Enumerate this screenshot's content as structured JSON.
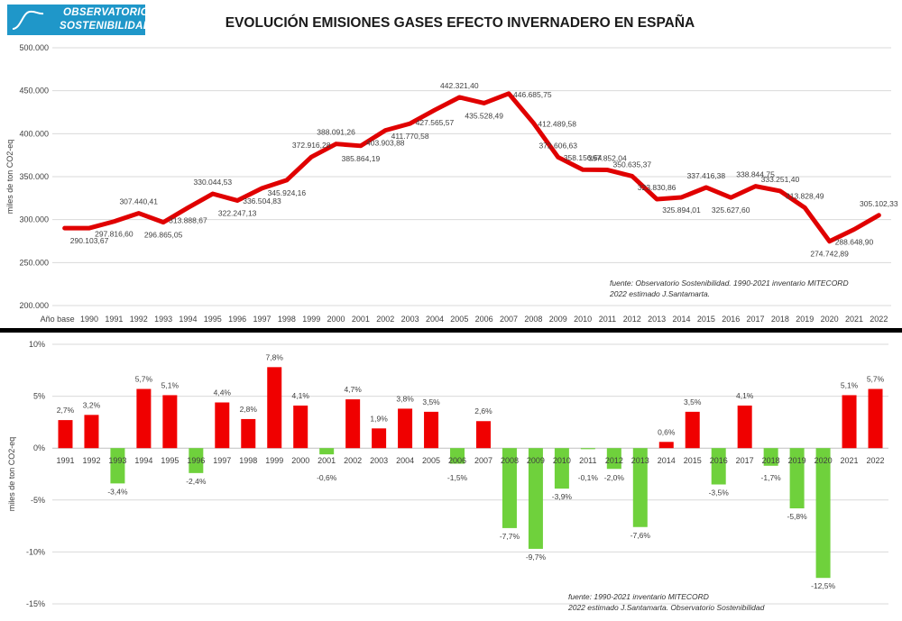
{
  "logo": {
    "line1": "OBSERVATORIO",
    "line2": "SOSTENIBILIDAD"
  },
  "title": "EVOLUCIÓN EMISIONES GASES EFECTO INVERNADERO EN ESPAÑA",
  "colors": {
    "line": "#e00000",
    "positive": "#f00000",
    "negative": "#6fd13c",
    "logo": "#1f97c9",
    "grid": "#d9d9d9"
  },
  "chart_data": [
    {
      "type": "line",
      "title": "",
      "ylabel": "miles de ton CO2-eq",
      "xlabel": "",
      "ylim": [
        200000,
        500000
      ],
      "yticks": [
        "200.000",
        "250.000",
        "300.000",
        "350.000",
        "400.000",
        "450.000",
        "500.000"
      ],
      "ytick_values": [
        200000,
        250000,
        300000,
        350000,
        400000,
        450000,
        500000
      ],
      "grid": true,
      "categories": [
        "Año base",
        "1990",
        "1991",
        "1992",
        "1993",
        "1994",
        "1995",
        "1996",
        "1997",
        "1998",
        "1999",
        "2000",
        "2001",
        "2002",
        "2003",
        "2004",
        "2005",
        "2006",
        "2007",
        "2008",
        "2009",
        "2010",
        "2011",
        "2012",
        "2013",
        "2014",
        "2015",
        "2016",
        "2017",
        "2018",
        "2019",
        "2020",
        "2021",
        "2022"
      ],
      "values": [
        290103.67,
        290103.67,
        297816.6,
        307440.41,
        296865.05,
        313888.67,
        330044.53,
        322247.13,
        336504.83,
        345924.16,
        372916.28,
        388091.26,
        385864.19,
        403903.88,
        411770.58,
        427565.57,
        442321.4,
        435528.49,
        446685.75,
        412489.58,
        372606.63,
        358156.64,
        357852.04,
        350635.37,
        323830.86,
        325894.01,
        337416.38,
        325627.6,
        338844.75,
        333251.4,
        313828.49,
        274742.89,
        288648.9,
        305102.33
      ],
      "data_labels": [
        {
          "i": 1,
          "text": "290.103,67",
          "pos": "below"
        },
        {
          "i": 2,
          "text": "297.816,60",
          "pos": "below"
        },
        {
          "i": 3,
          "text": "307.440,41",
          "pos": "above"
        },
        {
          "i": 4,
          "text": "296.865,05",
          "pos": "below"
        },
        {
          "i": 5,
          "text": "313.888,67",
          "pos": "below"
        },
        {
          "i": 6,
          "text": "330.044,53",
          "pos": "above"
        },
        {
          "i": 7,
          "text": "322.247,13",
          "pos": "below"
        },
        {
          "i": 8,
          "text": "336.504,83",
          "pos": "below"
        },
        {
          "i": 9,
          "text": "345.924,16",
          "pos": "below"
        },
        {
          "i": 10,
          "text": "372.916,28",
          "pos": "above"
        },
        {
          "i": 11,
          "text": "388.091,26",
          "pos": "above"
        },
        {
          "i": 12,
          "text": "385.864,19",
          "pos": "below"
        },
        {
          "i": 13,
          "text": "403.903,88",
          "pos": "below"
        },
        {
          "i": 14,
          "text": "411.770,58",
          "pos": "below"
        },
        {
          "i": 15,
          "text": "427.565,57",
          "pos": "below"
        },
        {
          "i": 16,
          "text": "442.321,40",
          "pos": "above"
        },
        {
          "i": 17,
          "text": "435.528,49",
          "pos": "below"
        },
        {
          "i": 18,
          "text": "446.685,75",
          "pos": "right"
        },
        {
          "i": 19,
          "text": "412.489,58",
          "pos": "right"
        },
        {
          "i": 20,
          "text": "372.606,63",
          "pos": "above"
        },
        {
          "i": 21,
          "text": "358.156,64",
          "pos": "above"
        },
        {
          "i": 22,
          "text": "357.852,04",
          "pos": "above"
        },
        {
          "i": 23,
          "text": "350.635,37",
          "pos": "above"
        },
        {
          "i": 24,
          "text": "323.830,86",
          "pos": "above"
        },
        {
          "i": 25,
          "text": "325.894,01",
          "pos": "below"
        },
        {
          "i": 26,
          "text": "337.416,38",
          "pos": "above"
        },
        {
          "i": 27,
          "text": "325.627,60",
          "pos": "below"
        },
        {
          "i": 28,
          "text": "338.844,75",
          "pos": "above"
        },
        {
          "i": 29,
          "text": "333.251,40",
          "pos": "above"
        },
        {
          "i": 30,
          "text": "313.828,49",
          "pos": "above"
        },
        {
          "i": 31,
          "text": "274.742,89",
          "pos": "below"
        },
        {
          "i": 32,
          "text": "288.648,90",
          "pos": "below"
        },
        {
          "i": 33,
          "text": "305.102,33",
          "pos": "above"
        }
      ],
      "source_note": [
        "fuente:  Observatorio Sostenibilidad. 1990-2021 inventario  MITECORD",
        "2022 estimado J.Santamarta."
      ]
    },
    {
      "type": "bar",
      "title": "",
      "ylabel": "miles de ton CO2-eq",
      "xlabel": "",
      "ylim": [
        -15,
        10
      ],
      "yticks": [
        "-15%",
        "-10%",
        "-5%",
        "0%",
        "5%",
        "10%"
      ],
      "ytick_values": [
        -15,
        -10,
        -5,
        0,
        5,
        10
      ],
      "grid": true,
      "categories": [
        "1991",
        "1992",
        "1993",
        "1994",
        "1995",
        "1996",
        "1997",
        "1998",
        "1999",
        "2000",
        "2001",
        "2002",
        "2003",
        "2004",
        "2005",
        "2006",
        "2007",
        "2008",
        "2009",
        "2010",
        "2011",
        "2012",
        "2013",
        "2014",
        "2015",
        "2016",
        "2017",
        "2018",
        "2019",
        "2020",
        "2021",
        "2022"
      ],
      "values": [
        2.7,
        3.2,
        -3.4,
        5.7,
        5.1,
        -2.4,
        4.4,
        2.8,
        7.8,
        4.1,
        -0.6,
        4.7,
        1.9,
        3.8,
        3.5,
        -1.5,
        2.6,
        -7.7,
        -9.7,
        -3.9,
        -0.1,
        -2.0,
        -7.6,
        0.6,
        3.5,
        -3.5,
        4.1,
        -1.7,
        -5.8,
        -12.5,
        5.1,
        5.7
      ],
      "labels": [
        "2,7%",
        "3,2%",
        "-3,4%",
        "5,7%",
        "5,1%",
        "-2,4%",
        "4,4%",
        "2,8%",
        "7,8%",
        "4,1%",
        "-0,6%",
        "4,7%",
        "1,9%",
        "3,8%",
        "3,5%",
        "-1,5%",
        "2,6%",
        "-7,7%",
        "-9,7%",
        "-3,9%",
        "-0,1%",
        "-2,0%",
        "-7,6%",
        "0,6%",
        "3,5%",
        "-3,5%",
        "4,1%",
        "-1,7%",
        "-5,8%",
        "-12,5%",
        "5,1%",
        "5,7%"
      ],
      "source_note": [
        "fuente: 1990-2021 inventario  MITECORD",
        "2022 estimado J.Santamarta. Observatorio Sostenibilidad"
      ]
    }
  ]
}
